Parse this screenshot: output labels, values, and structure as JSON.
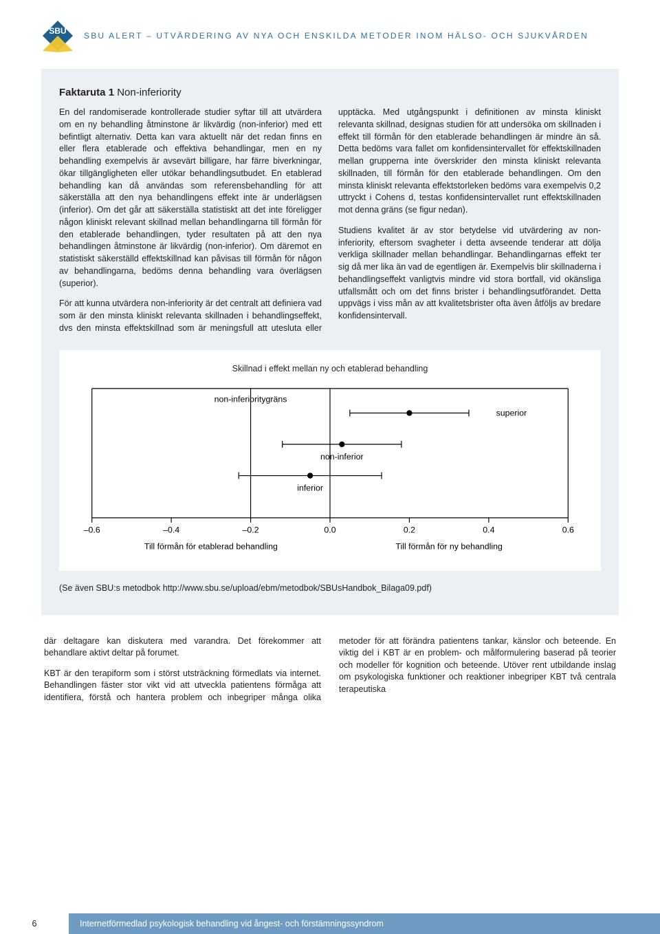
{
  "colors": {
    "header_text": "#2f6fa3",
    "factbox_bg": "#eceff3",
    "chart_bg": "#ffffff",
    "axis": "#000000",
    "footer_bar": "#6e9bc2",
    "logo_badge": "#1f5f8e",
    "logo_accent": "#f1c533",
    "body_text": "#1a1a1a"
  },
  "typography": {
    "header_fontsize": 12,
    "factbox_title_fontsize": 15,
    "factbox_body_fontsize": 12.5,
    "body_fontsize": 12.5,
    "chart_label_fontsize": 12.5,
    "footer_fontsize": 12.5,
    "pagenum_fontsize": 12.5
  },
  "header": {
    "logo_text": "SBU",
    "text": "SBU ALERT – UTVÄRDERING AV NYA OCH ENSKILDA METODER INOM HÄLSO- OCH SJUKVÅRDEN"
  },
  "factbox": {
    "title_bold": "Faktaruta 1",
    "title_light": " Non-inferiority",
    "paragraphs": [
      "En del randomiserade kontrollerade studier syftar till att utvärdera om en ny behandling åtminstone är likvärdig (non-inferior) med ett befintligt alternativ. Detta kan vara aktuellt när det redan finns en eller flera etablerade och effektiva behandlingar, men en ny behandling exempelvis är avsevärt billigare, har färre biverkningar, ökar tillgängligheten eller utökar behandlingsutbudet. En etablerad behandling kan då användas som referensbehandling för att säkerställa att den nya behandlingens effekt inte är underlägsen (inferior). Om det går att säkerställa statistiskt att det inte föreligger någon kliniskt relevant skillnad mellan behandlingarna till förmån för den etablerade behandlingen, tyder resultaten på att den nya behandlingen åtminstone är likvärdig (non-inferior). Om däremot en statistiskt säkerställd effektskillnad kan påvisas till förmån för någon av behandlingarna, bedöms denna behandling vara överlägsen (superior).",
      "För att kunna utvärdera non-inferiority är det centralt att definiera vad som är den minsta kliniskt relevanta skillnaden i behandlingseffekt, dvs den minsta effektskillnad som är meningsfull att utesluta eller upptäcka. Med utgångspunkt i definitionen av minsta kliniskt relevanta skillnad, designas studien för att undersöka om skillnaden i effekt till förmån för den etablerade behandlingen är mindre än så. Detta bedöms vara fallet om konfidensintervallet för effektskillnaden mellan grupperna inte överskrider den minsta kliniskt relevanta skillnaden, till förmån för den etablerade behandlingen. Om den minsta kliniskt relevanta effektstorleken bedöms vara exempelvis 0,2 uttryckt i Cohens d, testas konfidensintervallet runt effektskillnaden mot denna gräns (se figur nedan).",
      "Studiens kvalitet är av stor betydelse vid utvärdering av non-inferiority, eftersom svagheter i detta avseende tenderar att dölja verkliga skillnader mellan behandlingar. Behandlingarnas effekt ter sig då mer lika än vad de egentligen är. Exempelvis blir skillnaderna i behandlingseffekt vanligtvis mindre vid stora bortfall, vid okänsliga utfallsmått och om det finns brister i behandlingsutförandet. Detta uppvägs i viss mån av att kvalitetsbrister ofta även åtföljs av bredare konfidensintervall."
    ],
    "footnote": "(Se även SBU:s metodbok http://www.sbu.se/upload/ebm/metodbok/SBUsHandbok_Bilaga09.pdf)"
  },
  "chart": {
    "type": "forest-plot",
    "title": "Skillnad i effekt mellan ny och etablerad behandling",
    "boundary_label": "non-inferioritygräns",
    "left_axis_label": "Till förmån för etablerad behandling",
    "right_axis_label": "Till förmån för ny behandling",
    "xlim": [
      -0.6,
      0.6
    ],
    "ticks": [
      {
        "value": -0.6,
        "label": "–0.6"
      },
      {
        "value": -0.4,
        "label": "–0.4"
      },
      {
        "value": -0.2,
        "label": "–0.2"
      },
      {
        "value": 0.0,
        "label": "0.0"
      },
      {
        "value": 0.2,
        "label": "0.2"
      },
      {
        "value": 0.4,
        "label": "0.4"
      },
      {
        "value": 0.6,
        "label": "0.6"
      }
    ],
    "boundary_x": -0.2,
    "zero_x": 0.0,
    "series": [
      {
        "label": "superior",
        "point": 0.2,
        "low": 0.05,
        "high": 0.35,
        "label_side": "right"
      },
      {
        "label": "non-inferior",
        "point": 0.03,
        "low": -0.12,
        "high": 0.18,
        "label_side": "below"
      },
      {
        "label": "inferior",
        "point": -0.05,
        "low": -0.23,
        "high": 0.13,
        "label_side": "below"
      }
    ],
    "marker_radius": 4.2,
    "cap_half_height": 5,
    "axis_color": "#000000",
    "line_width": 1.2,
    "font_size": 12.5
  },
  "body": {
    "paragraphs": [
      "där deltagare kan diskutera med varandra. Det förekommer att behandlare aktivt deltar på forumet.",
      "KBT är den terapiform som i störst utsträckning förmedlats via internet. Behandlingen fäster stor vikt vid att utveckla patientens förmåga att identifiera, förstå och hantera problem och inbegriper många olika metoder för att förändra patientens tankar, känslor och beteende. En viktig del i KBT är en problem- och målformulering baserad på teorier och modeller för kognition och beteende. Utöver rent utbildande inslag om psykologiska funktioner och reaktioner inbegriper KBT två centrala terapeutiska"
    ]
  },
  "footer": {
    "page_number": "6",
    "title": "Internetförmedlad psykologisk behandling vid ångest- och förstämningssyndrom"
  }
}
